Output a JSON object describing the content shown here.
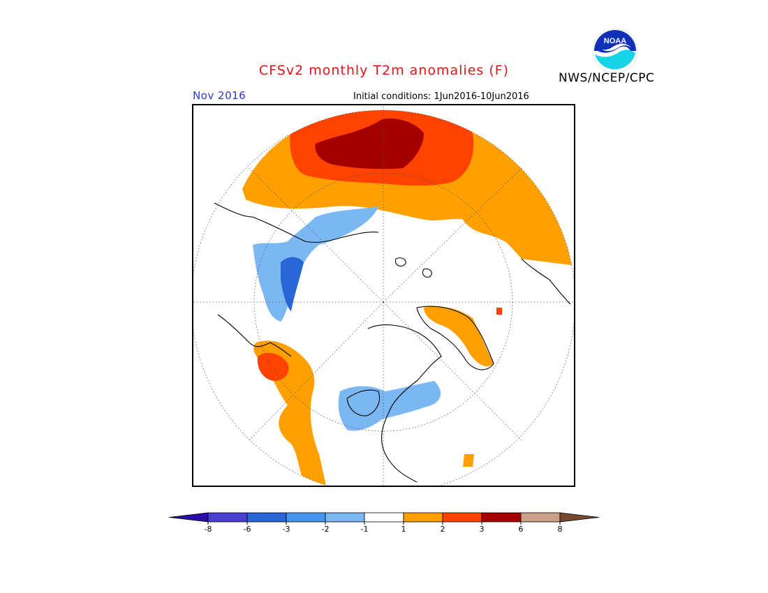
{
  "header": {
    "title": "CFSv2 monthly T2m anomalies (F)",
    "agency": "NWS/NCEP/CPC",
    "logo_text": "NOAA",
    "valid_month": "Nov 2016",
    "initial_conditions": "Initial conditions: 1Jun2016-10Jun2016"
  },
  "colors": {
    "title": "#e8131a",
    "month": "#2a35d8",
    "land_outline": "#000000"
  },
  "legend": {
    "bins": [
      {
        "color": "#2c0da6"
      },
      {
        "color": "#4a3fd2"
      },
      {
        "color": "#2766d4"
      },
      {
        "color": "#4594ed"
      },
      {
        "color": "#7bb8f3"
      },
      {
        "color": "#ffffff"
      },
      {
        "color": "#ffa000"
      },
      {
        "color": "#ff4200"
      },
      {
        "color": "#a50000"
      },
      {
        "color": "#c9a08a"
      },
      {
        "color": "#77492f"
      }
    ],
    "tick_labels": [
      "-8",
      "-6",
      "-3",
      "-2",
      "-1",
      "1",
      "2",
      "3",
      "6",
      "8"
    ]
  },
  "map": {
    "projection": "north polar stereographic",
    "regions": [
      {
        "name": "north-pacific-warm",
        "anomaly_bin": "1 to 2"
      },
      {
        "name": "north-pacific-hot",
        "anomaly_bin": "2 to 3"
      },
      {
        "name": "north-pacific-core",
        "anomaly_bin": "3 to 6"
      },
      {
        "name": "central-asia-cold",
        "anomaly_bin": "-3 to -1"
      },
      {
        "name": "central-asia-cold-core",
        "anomaly_bin": "-6 to -3"
      },
      {
        "name": "western-europe-warm",
        "anomaly_bin": "1 to 2"
      },
      {
        "name": "iberia-hot",
        "anomaly_bin": "2 to 3"
      },
      {
        "name": "canada-cool",
        "anomaly_bin": "-2 to -1"
      },
      {
        "name": "greenland-warm",
        "anomaly_bin": "1 to 2"
      }
    ]
  }
}
